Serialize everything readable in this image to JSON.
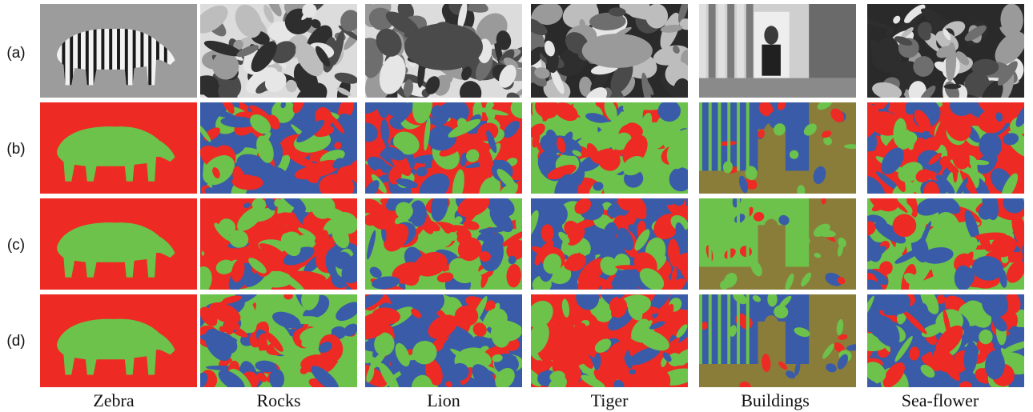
{
  "row_labels": [
    "(a)",
    "(b)",
    "(c)",
    "(d)"
  ],
  "column_labels": [
    "Zebra",
    "Rocks",
    "Lion",
    "Tiger",
    "Buildings",
    "Sea-flower"
  ],
  "segmentation_colors": {
    "red": "#ee2a24",
    "green": "#6cc24a",
    "blue": "#3a5ba8",
    "olive": "#8a7d3a"
  },
  "photo_tones": {
    "light": "#dcdcdc",
    "mid": "#8c8c8c",
    "dark": "#2a2a2a"
  }
}
